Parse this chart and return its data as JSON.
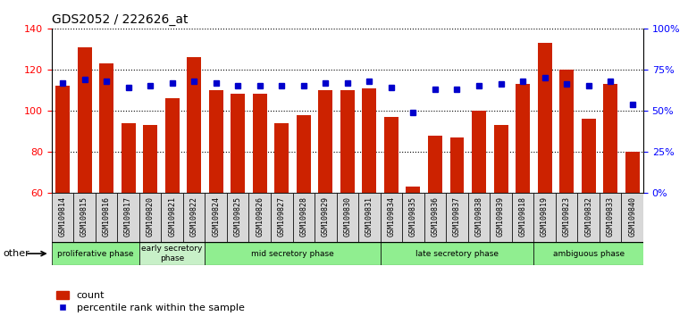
{
  "title": "GDS2052 / 222626_at",
  "samples": [
    "GSM109814",
    "GSM109815",
    "GSM109816",
    "GSM109817",
    "GSM109820",
    "GSM109821",
    "GSM109822",
    "GSM109824",
    "GSM109825",
    "GSM109826",
    "GSM109827",
    "GSM109828",
    "GSM109829",
    "GSM109830",
    "GSM109831",
    "GSM109834",
    "GSM109835",
    "GSM109836",
    "GSM109837",
    "GSM109838",
    "GSM109839",
    "GSM109818",
    "GSM109819",
    "GSM109823",
    "GSM109832",
    "GSM109833",
    "GSM109840"
  ],
  "counts": [
    112,
    131,
    123,
    94,
    93,
    106,
    126,
    110,
    108,
    108,
    94,
    98,
    110,
    110,
    111,
    97,
    63,
    88,
    87,
    100,
    93,
    113,
    133,
    120,
    96,
    113,
    80
  ],
  "percentiles": [
    67,
    69,
    68,
    64,
    65,
    67,
    68,
    67,
    65,
    65,
    65,
    65,
    67,
    67,
    68,
    64,
    49,
    63,
    63,
    65,
    66,
    68,
    70,
    66,
    65,
    68,
    54
  ],
  "ylim_left": [
    60,
    140
  ],
  "ylim_right": [
    0,
    100
  ],
  "yticks_left": [
    60,
    80,
    100,
    120,
    140
  ],
  "yticks_right": [
    0,
    25,
    50,
    75,
    100
  ],
  "ytick_labels_right": [
    "0%",
    "25%",
    "50%",
    "75%",
    "100%"
  ],
  "bar_color": "#CC2200",
  "dot_color": "#0000CC",
  "phases": [
    {
      "label": "proliferative phase",
      "start": 0,
      "end": 4
    },
    {
      "label": "early secretory\nphase",
      "start": 4,
      "end": 7
    },
    {
      "label": "mid secretory phase",
      "start": 7,
      "end": 15
    },
    {
      "label": "late secretory phase",
      "start": 15,
      "end": 22
    },
    {
      "label": "ambiguous phase",
      "start": 22,
      "end": 27
    }
  ],
  "phase_colors": [
    "#90EE90",
    "#c8f0c8",
    "#90EE90",
    "#90EE90",
    "#90EE90"
  ],
  "legend": [
    "count",
    "percentile rank within the sample"
  ],
  "tick_bg_color": "#d8d8d8"
}
